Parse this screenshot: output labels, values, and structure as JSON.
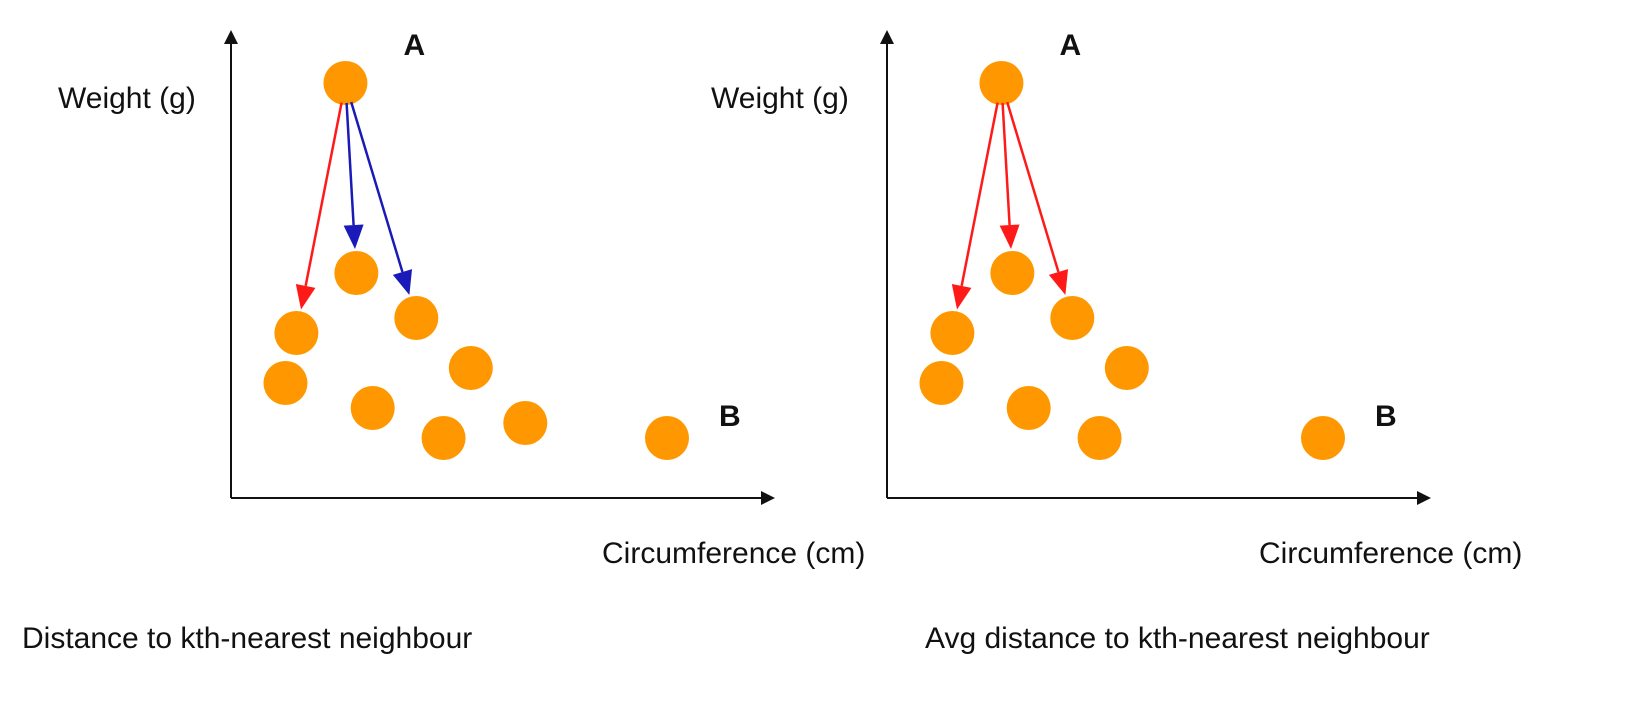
{
  "colors": {
    "point": "#ff9800",
    "axis": "#111111",
    "red_arrow": "#ff1a1a",
    "blue_arrow": "#1a1ab8"
  },
  "panels": [
    {
      "ylabel": "Weight (g)",
      "xlabel": "Circumference (cm)",
      "caption": "Distance to kth-nearest neighbour",
      "point_labels": {
        "A": "A",
        "B": "B"
      },
      "points": [
        {
          "x": 2.1,
          "y": 8.3
        },
        {
          "x": 1.2,
          "y": 3.3
        },
        {
          "x": 2.3,
          "y": 4.5
        },
        {
          "x": 3.4,
          "y": 3.6
        },
        {
          "x": 1.0,
          "y": 2.3
        },
        {
          "x": 2.6,
          "y": 1.8
        },
        {
          "x": 4.4,
          "y": 2.6
        },
        {
          "x": 3.9,
          "y": 1.2
        },
        {
          "x": 5.4,
          "y": 1.5
        },
        {
          "x": 8.0,
          "y": 1.2
        }
      ],
      "arrows": [
        {
          "to": 1,
          "color": "red_arrow"
        },
        {
          "to": 2,
          "color": "blue_arrow"
        },
        {
          "to": 3,
          "color": "blue_arrow"
        }
      ]
    },
    {
      "ylabel": "Weight (g)",
      "xlabel": "Circumference (cm)",
      "caption": "Avg distance to kth-nearest neighbour",
      "point_labels": {
        "A": "A",
        "B": "B"
      },
      "points": [
        {
          "x": 2.1,
          "y": 8.3
        },
        {
          "x": 1.2,
          "y": 3.3
        },
        {
          "x": 2.3,
          "y": 4.5
        },
        {
          "x": 3.4,
          "y": 3.6
        },
        {
          "x": 1.0,
          "y": 2.3
        },
        {
          "x": 2.6,
          "y": 1.8
        },
        {
          "x": 4.4,
          "y": 2.6
        },
        {
          "x": 3.9,
          "y": 1.2
        },
        {
          "x": 8.0,
          "y": 1.2
        }
      ],
      "arrows": [
        {
          "to": 1,
          "color": "red_arrow"
        },
        {
          "to": 2,
          "color": "red_arrow"
        },
        {
          "to": 3,
          "color": "red_arrow"
        }
      ]
    }
  ]
}
